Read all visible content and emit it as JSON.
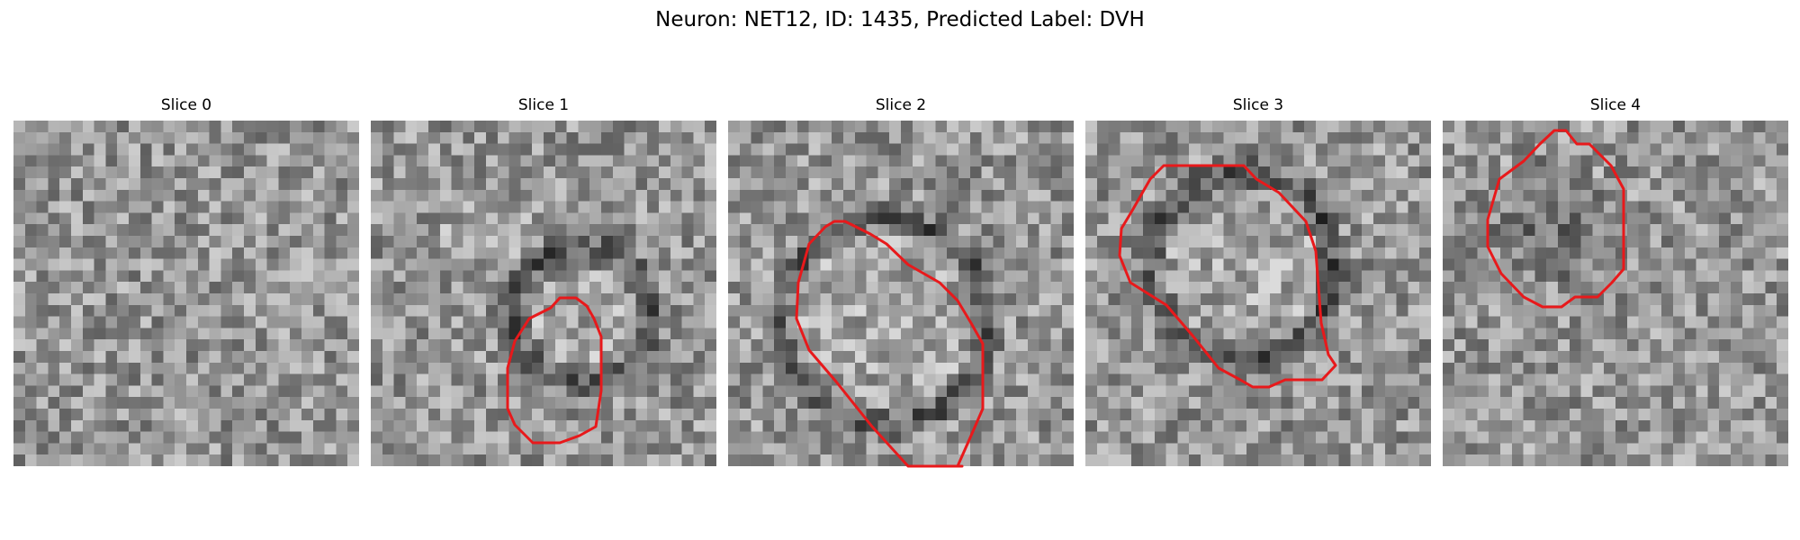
{
  "figure": {
    "title": "Neuron: NET12, ID: 1435, Predicted Label: DVH",
    "contour_color": "#e8191b"
  },
  "panels": [
    {
      "title": "Slice 0",
      "image": "noisy-grayscale-patch"
    },
    {
      "title": "Slice 1",
      "image": "noisy-grayscale-patch-with-cell"
    },
    {
      "title": "Slice 2",
      "image": "noisy-grayscale-patch-with-cell"
    },
    {
      "title": "Slice 3",
      "image": "noisy-grayscale-patch-with-cell"
    },
    {
      "title": "Slice 4",
      "image": "noisy-grayscale-patch-with-cell"
    }
  ]
}
